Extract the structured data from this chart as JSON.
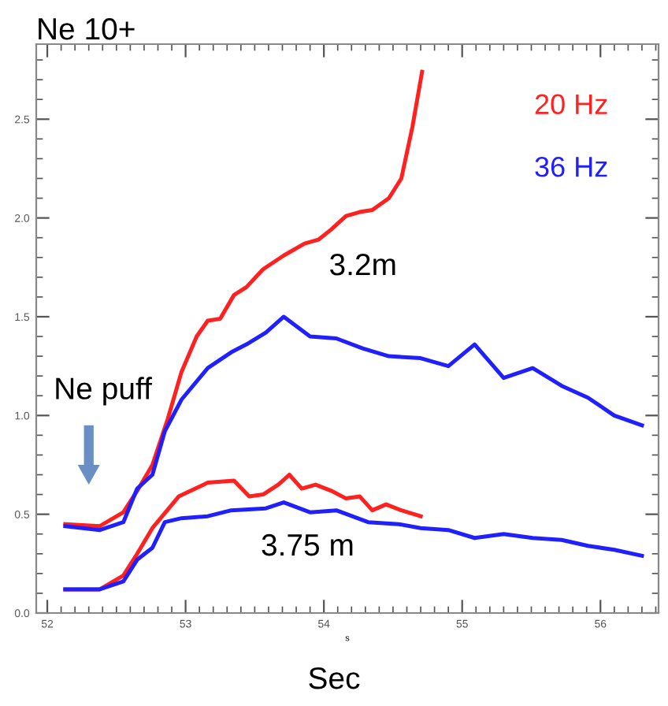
{
  "chart_data": {
    "type": "line",
    "title": "Ne 10+",
    "xlabel": "Sec",
    "annotations": [
      "s",
      "3.2m",
      "3.75 m",
      "Ne puff"
    ],
    "xlim": [
      51.92,
      56.42
    ],
    "ylim": [
      0,
      2.88
    ],
    "xticks": [
      52,
      53,
      54,
      55,
      56
    ],
    "yticks": [
      {
        "value": 0,
        "label": "0.0"
      },
      {
        "value": 0.5,
        "label": "0.5"
      },
      {
        "value": 1,
        "label": "1.0"
      },
      {
        "value": 1.5,
        "label": "1.5"
      },
      {
        "value": 2,
        "label": "2.0"
      },
      {
        "value": 2.5,
        "label": "2.5"
      }
    ],
    "grid": false,
    "legend": "top right",
    "marker": "none",
    "line_style": "solid",
    "series": [
      {
        "name": "20 Hz",
        "color": "#ff2020",
        "x": [
          52.13,
          52.38,
          52.55,
          52.66,
          52.76,
          52.87,
          52.97,
          53.08,
          53.16,
          53.25,
          53.35,
          53.44,
          53.56,
          53.71,
          53.86,
          53.96,
          54.05,
          54.16,
          54.26,
          54.35,
          54.47,
          54.56,
          54.64,
          54.71
        ],
        "values": [
          0.45,
          0.44,
          0.51,
          0.63,
          0.75,
          0.98,
          1.22,
          1.4,
          1.48,
          1.49,
          1.61,
          1.65,
          1.74,
          1.81,
          1.87,
          1.89,
          1.94,
          2.01,
          2.03,
          2.04,
          2.1,
          2.2,
          2.46,
          2.74
        ]
      },
      {
        "name": "36 Hz",
        "color": "#2020ff",
        "x": [
          52.13,
          52.38,
          52.55,
          52.65,
          52.76,
          52.85,
          52.97,
          53.16,
          53.33,
          53.44,
          53.58,
          53.71,
          53.9,
          54.09,
          54.28,
          54.47,
          54.7,
          54.9,
          55.09,
          55.3,
          55.51,
          55.72,
          55.91,
          56.1,
          56.3
        ],
        "values": [
          0.44,
          0.42,
          0.46,
          0.63,
          0.7,
          0.92,
          1.08,
          1.24,
          1.32,
          1.36,
          1.42,
          1.5,
          1.4,
          1.39,
          1.34,
          1.3,
          1.29,
          1.25,
          1.36,
          1.19,
          1.24,
          1.15,
          1.09,
          1.0,
          0.95
        ]
      },
      {
        "color": "#ff2020",
        "x": [
          52.13,
          52.38,
          52.55,
          52.65,
          52.76,
          52.95,
          53.16,
          53.35,
          53.46,
          53.56,
          53.67,
          53.75,
          53.84,
          53.94,
          54.05,
          54.16,
          54.26,
          54.35,
          54.45,
          54.56,
          54.7
        ],
        "values": [
          0.12,
          0.12,
          0.19,
          0.3,
          0.43,
          0.59,
          0.66,
          0.67,
          0.59,
          0.6,
          0.65,
          0.7,
          0.63,
          0.65,
          0.62,
          0.58,
          0.59,
          0.52,
          0.55,
          0.52,
          0.49
        ]
      },
      {
        "color": "#2020ff",
        "x": [
          52.13,
          52.38,
          52.55,
          52.65,
          52.76,
          52.85,
          52.97,
          53.16,
          53.33,
          53.58,
          53.71,
          53.9,
          54.09,
          54.32,
          54.54,
          54.7,
          54.9,
          55.09,
          55.3,
          55.51,
          55.72,
          55.91,
          56.1,
          56.3
        ],
        "values": [
          0.12,
          0.12,
          0.16,
          0.27,
          0.33,
          0.46,
          0.48,
          0.49,
          0.52,
          0.53,
          0.56,
          0.51,
          0.52,
          0.46,
          0.45,
          0.43,
          0.42,
          0.38,
          0.4,
          0.38,
          0.37,
          0.34,
          0.32,
          0.29
        ]
      }
    ]
  }
}
